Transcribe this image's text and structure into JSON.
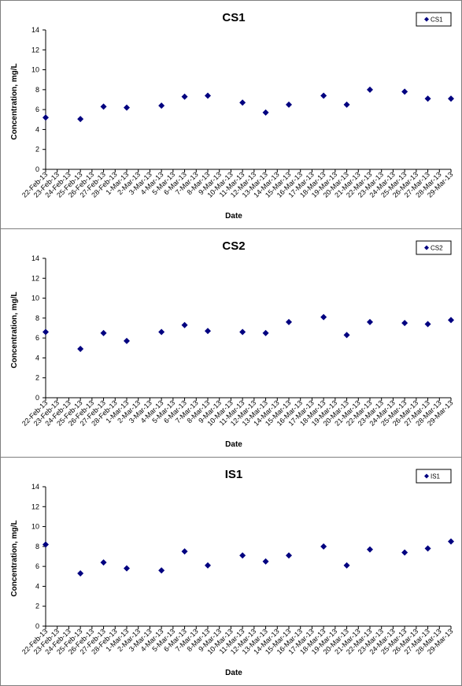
{
  "chart_data": [
    {
      "type": "scatter",
      "title": "CS1",
      "xlabel": "Date",
      "ylabel": "Concentration, mg/L",
      "ylim": [
        0,
        14
      ],
      "yticks": [
        "0",
        "2",
        "4",
        "6",
        "8",
        "10",
        "12",
        "14"
      ],
      "grid": false,
      "legend_position": "top-right",
      "marker_color": "#000080",
      "series": [
        {
          "name": "CS1",
          "points": [
            {
              "x": "22-Feb-13",
              "y": 5.2
            },
            {
              "x": "25-Feb-13",
              "y": 5.05
            },
            {
              "x": "27-Feb-13",
              "y": 6.3
            },
            {
              "x": "1-Mar-13",
              "y": 6.2
            },
            {
              "x": "4-Mar-13",
              "y": 6.4
            },
            {
              "x": "6-Mar-13",
              "y": 7.3
            },
            {
              "x": "8-Mar-13",
              "y": 7.4
            },
            {
              "x": "11-Mar-13",
              "y": 6.7
            },
            {
              "x": "13-Mar-13",
              "y": 5.7
            },
            {
              "x": "15-Mar-13",
              "y": 6.5
            },
            {
              "x": "18-Mar-13",
              "y": 7.4
            },
            {
              "x": "20-Mar-13",
              "y": 6.5
            },
            {
              "x": "22-Mar-13",
              "y": 8.0
            },
            {
              "x": "25-Mar-13",
              "y": 7.8
            },
            {
              "x": "27-Mar-13",
              "y": 7.1
            },
            {
              "x": "29-Mar-13",
              "y": 7.1
            }
          ]
        }
      ]
    },
    {
      "type": "scatter",
      "title": "CS2",
      "xlabel": "Date",
      "ylabel": "Concentration, mg/L",
      "ylim": [
        0,
        14
      ],
      "yticks": [
        "0",
        "2",
        "4",
        "6",
        "8",
        "10",
        "12",
        "14"
      ],
      "grid": false,
      "legend_position": "top-right",
      "marker_color": "#000080",
      "series": [
        {
          "name": "CS2",
          "points": [
            {
              "x": "22-Feb-13",
              "y": 6.6
            },
            {
              "x": "25-Feb-13",
              "y": 4.9
            },
            {
              "x": "27-Feb-13",
              "y": 6.5
            },
            {
              "x": "1-Mar-13",
              "y": 5.7
            },
            {
              "x": "4-Mar-13",
              "y": 6.6
            },
            {
              "x": "6-Mar-13",
              "y": 7.3
            },
            {
              "x": "8-Mar-13",
              "y": 6.7
            },
            {
              "x": "11-Mar-13",
              "y": 6.6
            },
            {
              "x": "13-Mar-13",
              "y": 6.5
            },
            {
              "x": "15-Mar-13",
              "y": 7.6
            },
            {
              "x": "18-Mar-13",
              "y": 8.1
            },
            {
              "x": "20-Mar-13",
              "y": 6.3
            },
            {
              "x": "22-Mar-13",
              "y": 7.6
            },
            {
              "x": "25-Mar-13",
              "y": 7.5
            },
            {
              "x": "27-Mar-13",
              "y": 7.4
            },
            {
              "x": "29-Mar-13",
              "y": 7.8
            }
          ]
        }
      ]
    },
    {
      "type": "scatter",
      "title": "IS1",
      "xlabel": "Date",
      "ylabel": "Concentration, mg/L",
      "ylim": [
        0,
        14
      ],
      "yticks": [
        "0",
        "2",
        "4",
        "6",
        "8",
        "10",
        "12",
        "14"
      ],
      "grid": false,
      "legend_position": "top-right",
      "marker_color": "#000080",
      "series": [
        {
          "name": "IS1",
          "points": [
            {
              "x": "22-Feb-13",
              "y": 8.2
            },
            {
              "x": "25-Feb-13",
              "y": 5.3
            },
            {
              "x": "27-Feb-13",
              "y": 6.4
            },
            {
              "x": "1-Mar-13",
              "y": 5.8
            },
            {
              "x": "4-Mar-13",
              "y": 5.6
            },
            {
              "x": "6-Mar-13",
              "y": 7.5
            },
            {
              "x": "8-Mar-13",
              "y": 6.1
            },
            {
              "x": "11-Mar-13",
              "y": 7.1
            },
            {
              "x": "13-Mar-13",
              "y": 6.5
            },
            {
              "x": "15-Mar-13",
              "y": 7.1
            },
            {
              "x": "18-Mar-13",
              "y": 8.0
            },
            {
              "x": "20-Mar-13",
              "y": 6.1
            },
            {
              "x": "22-Mar-13",
              "y": 7.7
            },
            {
              "x": "25-Mar-13",
              "y": 7.4
            },
            {
              "x": "27-Mar-13",
              "y": 7.8
            },
            {
              "x": "29-Mar-13",
              "y": 8.5
            }
          ]
        }
      ]
    }
  ],
  "x_categories": [
    "22-Feb-13",
    "23-Feb-13",
    "24-Feb-13",
    "25-Feb-13",
    "26-Feb-13",
    "27-Feb-13",
    "28-Feb-13",
    "1-Mar-13",
    "2-Mar-13",
    "3-Mar-13",
    "4-Mar-13",
    "5-Mar-13",
    "6-Mar-13",
    "7-Mar-13",
    "8-Mar-13",
    "9-Mar-13",
    "10-Mar-13",
    "11-Mar-13",
    "12-Mar-13",
    "13-Mar-13",
    "14-Mar-13",
    "15-Mar-13",
    "16-Mar-13",
    "17-Mar-13",
    "18-Mar-13",
    "19-Mar-13",
    "20-Mar-13",
    "21-Mar-13",
    "22-Mar-13",
    "23-Mar-13",
    "24-Mar-13",
    "25-Mar-13",
    "26-Mar-13",
    "27-Mar-13",
    "28-Mar-13",
    "29-Mar-13"
  ]
}
